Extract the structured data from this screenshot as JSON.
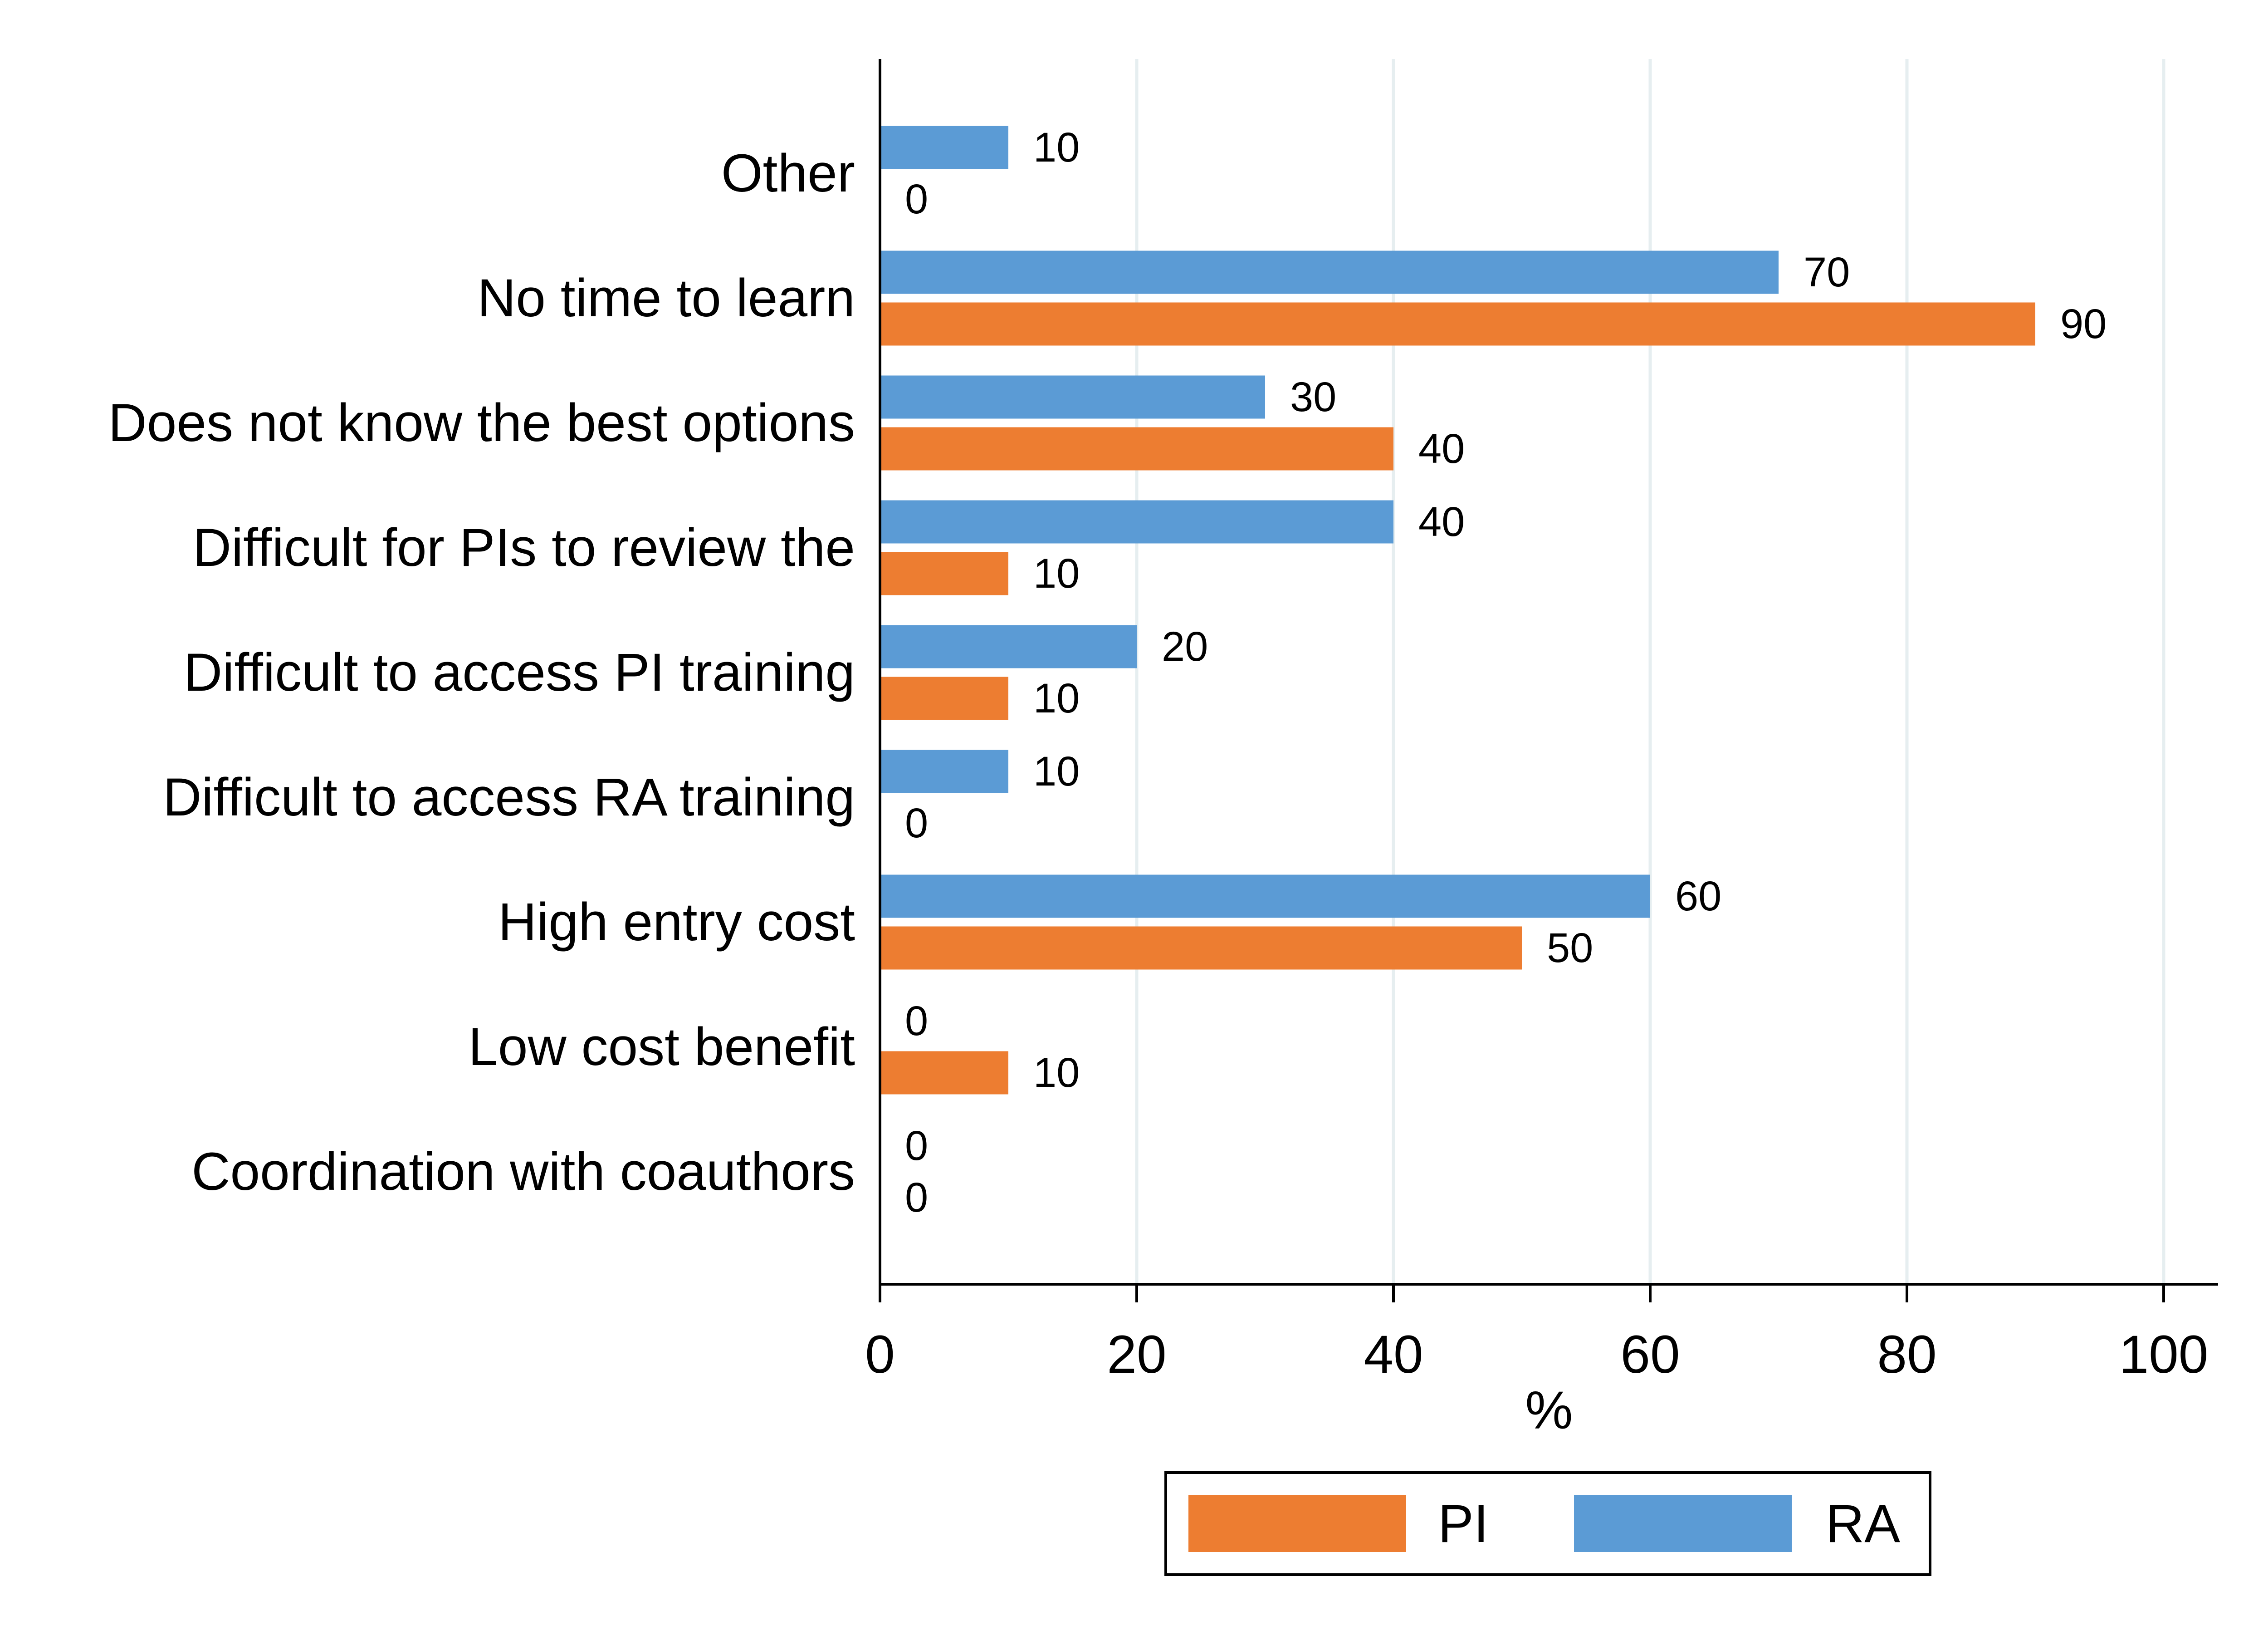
{
  "chart_data": {
    "type": "bar",
    "orientation": "horizontal",
    "categories": [
      "Other",
      "No time to learn",
      "Does not know the best options",
      "Difficult for PIs to review the",
      "Difficult to access PI training",
      "Difficult to access RA training",
      "High entry cost",
      "Low cost benefit",
      "Coordination with coauthors"
    ],
    "series": [
      {
        "name": "RA",
        "color": "#5b9bd5",
        "values": [
          10,
          70,
          30,
          40,
          20,
          10,
          60,
          0,
          0
        ]
      },
      {
        "name": "PI",
        "color": "#ed7d31",
        "values": [
          0,
          90,
          40,
          10,
          10,
          0,
          50,
          10,
          0
        ]
      }
    ],
    "title": "",
    "xlabel": "%",
    "ylabel": "",
    "xlim": [
      0,
      100
    ],
    "xticks": [
      0,
      20,
      40,
      60,
      80,
      100
    ],
    "grid": "vertical",
    "gridColor": "#e6eef0",
    "axisColor": "#000000",
    "legend": {
      "position": "bottom",
      "order": [
        "PI",
        "RA"
      ]
    }
  }
}
